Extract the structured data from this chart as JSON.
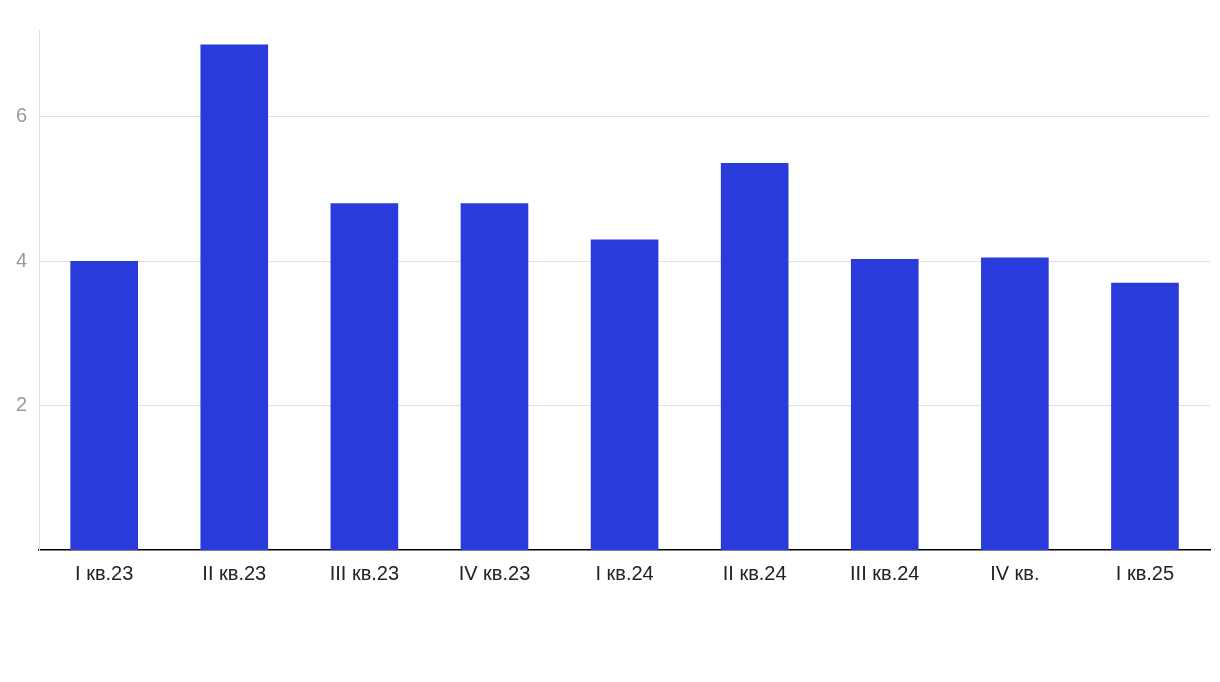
{
  "chart_data": {
    "type": "bar",
    "categories": [
      "I кв.23",
      "II кв.23",
      "III кв.23",
      "IV кв.23",
      "I кв.24",
      "II кв.24",
      "III кв.24",
      "IV кв.",
      "I кв.25"
    ],
    "values": [
      4.0,
      7.0,
      4.8,
      4.8,
      4.3,
      5.36,
      4.03,
      4.05,
      3.7
    ],
    "color": "#2a3bdc",
    "ylim": [
      0,
      7.2
    ],
    "yticks": [
      2,
      4,
      6
    ],
    "grid": "y",
    "legend": false
  }
}
